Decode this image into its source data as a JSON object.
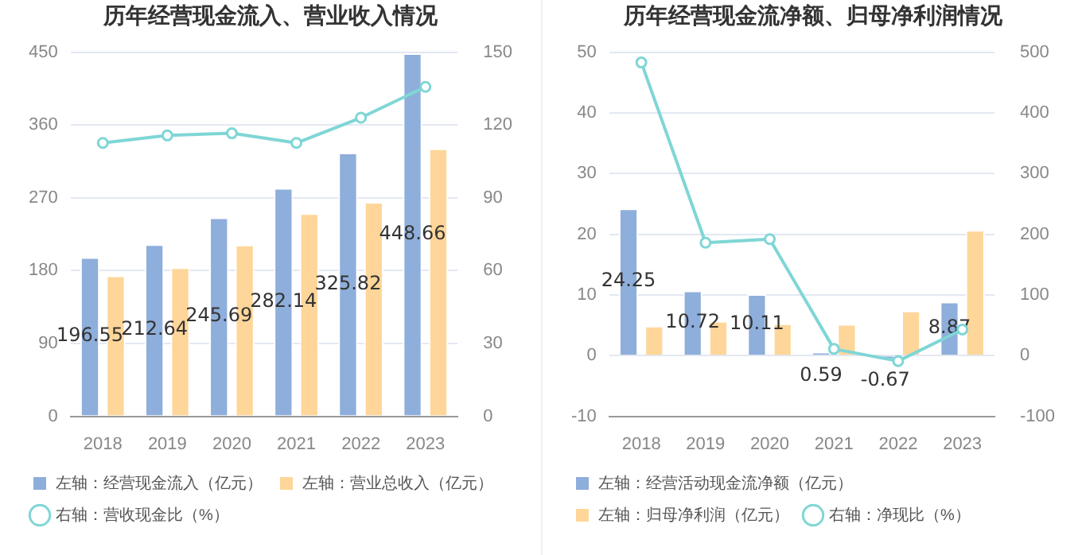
{
  "chart_data": [
    {
      "type": "bar",
      "title": "历年经营现金流入、营业收入情况",
      "categories": [
        "2018",
        "2019",
        "2020",
        "2021",
        "2022",
        "2023"
      ],
      "ylim": [
        0,
        450
      ],
      "yticks": [
        0,
        90,
        180,
        270,
        360,
        450
      ],
      "y2lim": [
        0,
        150
      ],
      "y2ticks": [
        0,
        30,
        60,
        90,
        120,
        150
      ],
      "grid": "y",
      "legend": "bottom",
      "marker": "circle",
      "series": [
        {
          "name": "左轴：经营现金流入（亿元）",
          "color": "#8eaedb",
          "values": [
            196.55,
            212.64,
            245.69,
            282.14,
            325.82,
            448.66
          ],
          "value_labels": [
            "196.55",
            "212.64",
            "245.69",
            "282.14",
            "325.82",
            "448.66"
          ]
        },
        {
          "name": "左轴：营业总收入（亿元）",
          "color": "#ffd699",
          "values": [
            174,
            184,
            212,
            251,
            265,
            331
          ]
        },
        {
          "name": "右轴：营收现金比（%）",
          "type": "line",
          "axis": "y2",
          "color": "#7fd6d6",
          "values": [
            112.6,
            115.7,
            116.6,
            112.6,
            123,
            135.7
          ]
        }
      ]
    },
    {
      "type": "bar",
      "title": "历年经营现金流净额、归母净利润情况",
      "categories": [
        "2018",
        "2019",
        "2020",
        "2021",
        "2022",
        "2023"
      ],
      "ylim": [
        -10,
        50
      ],
      "yticks": [
        -10,
        0,
        10,
        20,
        30,
        40,
        50
      ],
      "y2lim": [
        -100,
        500
      ],
      "y2ticks": [
        -100,
        0,
        100,
        200,
        300,
        400,
        500
      ],
      "grid": "y",
      "legend": "bottom",
      "marker": "circle",
      "series": [
        {
          "name": "左轴：经营活动现金流净额（亿元）",
          "color": "#8eaedb",
          "values": [
            24.25,
            10.72,
            10.11,
            0.59,
            -0.67,
            8.87
          ],
          "value_labels": [
            "24.25",
            "10.72",
            "10.11",
            "0.59",
            "-0.67",
            "8.87"
          ]
        },
        {
          "name": "左轴：归母净利润（亿元）",
          "color": "#ffd699",
          "values": [
            4.9,
            5.7,
            5.3,
            5.2,
            7.4,
            20.7
          ]
        },
        {
          "name": "右轴：净现比（%）",
          "type": "line",
          "axis": "y2",
          "color": "#7fd6d6",
          "values": [
            483,
            186,
            192,
            11,
            -9,
            43
          ]
        }
      ]
    }
  ]
}
